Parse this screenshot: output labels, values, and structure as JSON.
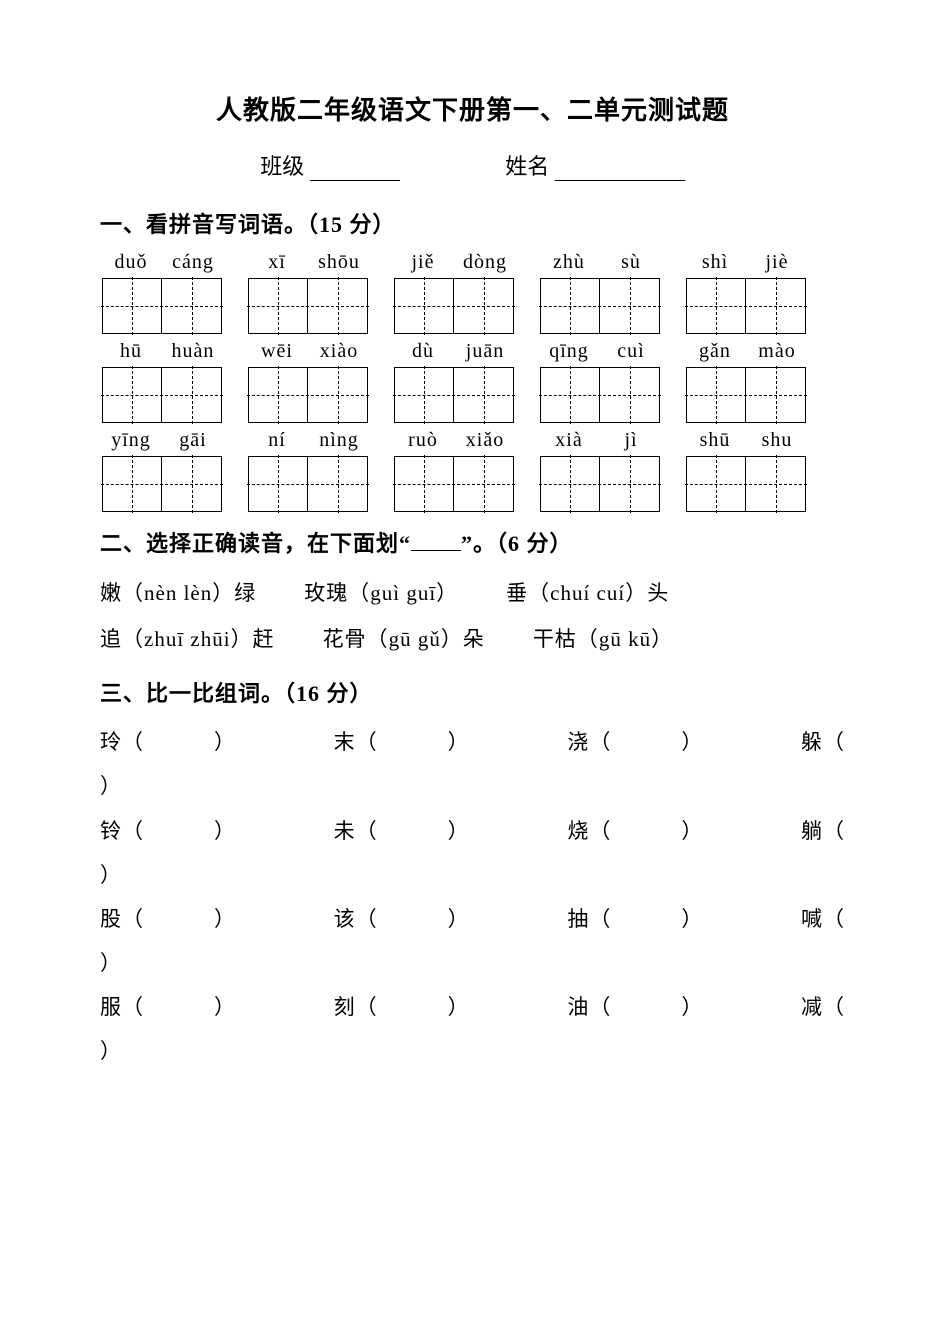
{
  "colors": {
    "background": "#ffffff",
    "text": "#000000",
    "border": "#000000"
  },
  "typography": {
    "base_family": "SimSun",
    "roman_family": "Times New Roman",
    "title_size_pt": 20,
    "heading_size_pt": 17,
    "body_size_pt": 16
  },
  "title": "人教版二年级语文下册第一、二单元测试题",
  "header": {
    "class_label": "班级",
    "name_label": "姓名"
  },
  "section1": {
    "heading": "一、看拼音写词语。（15 分）",
    "rows": [
      [
        {
          "p1": "duǒ",
          "p2": "cáng"
        },
        {
          "p1": "xī",
          "p2": "shōu"
        },
        {
          "p1": "jiě",
          "p2": "dòng"
        },
        {
          "p1": "zhù",
          "p2": "sù"
        },
        {
          "p1": "shì",
          "p2": "jiè"
        }
      ],
      [
        {
          "p1": "hū",
          "p2": "huàn"
        },
        {
          "p1": "wēi",
          "p2": "xiào"
        },
        {
          "p1": "dù",
          "p2": "juān"
        },
        {
          "p1": "qīng",
          "p2": "cuì"
        },
        {
          "p1": "gǎn",
          "p2": "mào"
        }
      ],
      [
        {
          "p1": "yīng",
          "p2": "gāi"
        },
        {
          "p1": "ní",
          "p2": "nìng"
        },
        {
          "p1": "ruò",
          "p2": "xiǎo"
        },
        {
          "p1": "xià",
          "p2": "jì"
        },
        {
          "p1": "shū",
          "p2": "shu"
        }
      ]
    ]
  },
  "section2": {
    "heading_pre": "二、选择正确读音，在下面划“",
    "heading_post": "”。（6 分）",
    "lines": [
      [
        {
          "han_pre": "嫩（",
          "roman": "nèn  lèn",
          "han_post": "）绿"
        },
        {
          "han_pre": "玫瑰（",
          "roman": "guì guī",
          "han_post": "）"
        },
        {
          "han_pre": "垂（",
          "roman": "chuí cuí",
          "han_post": "）头"
        }
      ],
      [
        {
          "han_pre": "追（",
          "roman": "zhuī zhūi",
          "han_post": "）赶"
        },
        {
          "han_pre": "花骨（",
          "roman": "gū gǔ",
          "han_post": "）朵"
        },
        {
          "han_pre": "干枯（",
          "roman": "gū  kū",
          "han_post": "）"
        }
      ]
    ]
  },
  "section3": {
    "heading": "三、比一比组词。（16 分）",
    "open": "（",
    "close": "）",
    "rows": [
      [
        "玲",
        "末",
        "浇",
        "躲"
      ],
      [
        "铃",
        "未",
        "烧",
        "躺"
      ],
      [
        "股",
        "该",
        "抽",
        "喊"
      ],
      [
        "服",
        "刻",
        "油",
        "减"
      ]
    ]
  }
}
